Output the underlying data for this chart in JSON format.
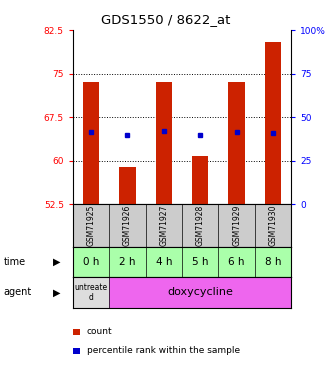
{
  "title": "GDS1550 / 8622_at",
  "samples": [
    "GSM71925",
    "GSM71926",
    "GSM71927",
    "GSM71928",
    "GSM71929",
    "GSM71930"
  ],
  "time_labels": [
    "0 h",
    "2 h",
    "4 h",
    "5 h",
    "6 h",
    "8 h"
  ],
  "bar_bottom": 52.5,
  "bar_top_values": [
    73.5,
    59.0,
    73.5,
    60.8,
    73.5,
    80.5
  ],
  "blue_dot_values": [
    65.0,
    64.5,
    65.2,
    64.5,
    65.0,
    64.8
  ],
  "ylim_left": [
    52.5,
    82.5
  ],
  "ylim_right": [
    0,
    100
  ],
  "yticks_left": [
    52.5,
    60,
    67.5,
    75,
    82.5
  ],
  "yticks_right": [
    0,
    25,
    50,
    75,
    100
  ],
  "ytick_labels_left": [
    "52.5",
    "60",
    "67.5",
    "75",
    "82.5"
  ],
  "ytick_labels_right": [
    "0",
    "25",
    "50",
    "75",
    "100%"
  ],
  "hgrid_vals": [
    60,
    67.5,
    75
  ],
  "bar_color": "#cc2200",
  "dot_color": "#0000cc",
  "time_bg_color": "#aaffaa",
  "agent_untreated_color": "#dddddd",
  "agent_doxy_color": "#ee66ee",
  "sample_bg_color": "#cccccc",
  "legend_count_color": "#cc2200",
  "legend_dot_color": "#0000cc",
  "bar_width": 0.45
}
